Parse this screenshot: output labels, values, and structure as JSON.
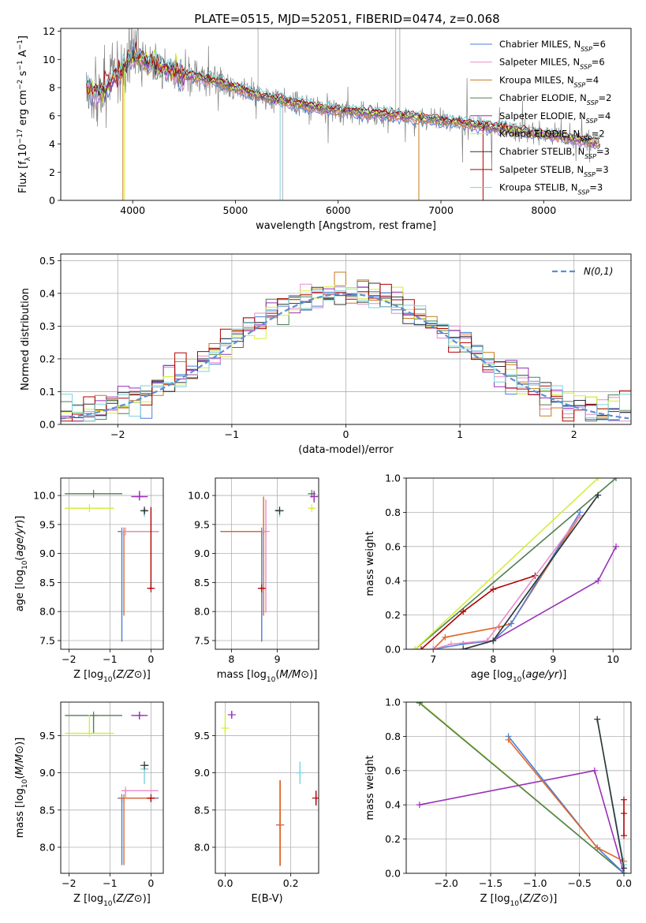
{
  "figure_title": "PLATE=0515, MJD=52051, FIBERID=0474, z=0.068",
  "colors": {
    "chabrier_miles": "#4a7fd4",
    "salpeter_miles": "#e88cc8",
    "kroupa_miles": "#c87a1a",
    "chabrier_elodie": "#4f7f55",
    "salpeter_elodie": "#9a2fb8",
    "kroupa_elodie": "#d4ee3a",
    "chabrier_stelib": "#333333",
    "salpeter_stelib": "#b00000",
    "kroupa_stelib": "#7ad2e0",
    "data": "#808080",
    "normal": "#5b8fd6",
    "orange_fit": "#e0682a"
  },
  "chart_data": [
    {
      "id": "spectrum",
      "type": "line",
      "title": "PLATE=0515, MJD=52051, FIBERID=0474, z=0.068",
      "xlabel": "wavelength [Angstrom, rest frame]",
      "ylabel": "Flux [f_λ10^-17 erg cm^-2 s^-1 A^-1]",
      "xlim": [
        3300,
        8850
      ],
      "ylim": [
        0,
        12.2
      ],
      "xticks": [
        4000,
        5000,
        6000,
        7000,
        8000
      ],
      "yticks": [
        0,
        2,
        4,
        6,
        8,
        10,
        12
      ],
      "legend_position": "top-right",
      "legend": [
        {
          "key": "chabrier_miles",
          "label": "Chabrier MILES, N",
          "sub": "SSP",
          "count": "=6"
        },
        {
          "key": "salpeter_miles",
          "label": "Salpeter MILES, N",
          "sub": "SSP",
          "count": "=6"
        },
        {
          "key": "kroupa_miles",
          "label": "Kroupa MILES, N",
          "sub": "SSP",
          "count": "=4"
        },
        {
          "key": "chabrier_elodie",
          "label": "Chabrier ELODIE, N",
          "sub": "SSP",
          "count": "=2"
        },
        {
          "key": "salpeter_elodie",
          "label": "Salpeter ELODIE, N",
          "sub": "SSP",
          "count": "=4"
        },
        {
          "key": "kroupa_elodie",
          "label": "Kroupa ELODIE, N",
          "sub": "SSP",
          "count": "=2"
        },
        {
          "key": "chabrier_stelib",
          "label": "Chabrier STELIB, N",
          "sub": "SSP",
          "count": "=3"
        },
        {
          "key": "salpeter_stelib",
          "label": "Salpeter STELIB, N",
          "sub": "SSP",
          "count": "=3"
        },
        {
          "key": "kroupa_stelib",
          "label": "Kroupa STELIB, N",
          "sub": "SSP",
          "count": "=3"
        }
      ],
      "continuum": {
        "x": [
          3550,
          3700,
          3900,
          4000,
          4100,
          4300,
          4500,
          4800,
          5000,
          5200,
          5500,
          5800,
          6000,
          6300,
          6600,
          7000,
          7400,
          7800,
          8200,
          8500
        ],
        "y": [
          8.0,
          7.6,
          9.2,
          10.3,
          10.0,
          9.4,
          8.9,
          8.5,
          8.0,
          7.5,
          7.0,
          6.6,
          6.4,
          6.2,
          6.0,
          5.7,
          5.3,
          4.9,
          4.5,
          4.1
        ]
      }
    },
    {
      "id": "residual_histogram",
      "type": "line",
      "xlabel": "(data-model)/error",
      "ylabel": "Normed distribution",
      "xlim": [
        -2.5,
        2.5
      ],
      "ylim": [
        0,
        0.52
      ],
      "xticks": [
        -2,
        -1,
        0,
        1,
        2
      ],
      "yticks": [
        0.0,
        0.1,
        0.2,
        0.3,
        0.4,
        0.5
      ],
      "legend_label": "N(0,1)",
      "legend_position": "top-right",
      "bin_width": 0.1
    },
    {
      "id": "age_vs_Z",
      "type": "scatter",
      "xlabel": "Z [log10(Z/Z⊙)]",
      "ylabel": "age [log10(age/yr)]",
      "xlim": [
        -2.2,
        0.3
      ],
      "ylim": [
        7.35,
        10.3
      ],
      "xticks": [
        -2,
        -1,
        0
      ],
      "yticks": [
        7.5,
        8.0,
        8.5,
        9.0,
        9.5,
        10.0
      ],
      "points": [
        {
          "key": "chabrier_elodie",
          "x": -1.4,
          "y": 10.03,
          "xerr": [
            0.7,
            0.7
          ],
          "yerr": [
            0,
            0
          ]
        },
        {
          "key": "kroupa_elodie",
          "x": -1.5,
          "y": 9.78,
          "xerr": [
            0.6,
            0.6
          ],
          "yerr": [
            0,
            0
          ]
        },
        {
          "key": "salpeter_elodie",
          "x": -0.28,
          "y": 9.98,
          "xerr": [
            0.2,
            0.2
          ],
          "yerr": [
            0.05,
            0.1
          ]
        },
        {
          "key": "chabrier_miles",
          "x": -0.71,
          "y": 9.38,
          "xerr": [
            0.1,
            0.9
          ],
          "yerr": [
            1.9,
            0
          ]
        },
        {
          "key": "orange_fit",
          "x": -0.66,
          "y": 9.38,
          "xerr": [
            0.1,
            0.8
          ],
          "yerr": [
            1.45,
            0
          ]
        },
        {
          "key": "salpeter_miles",
          "x": -0.62,
          "y": 9.38,
          "xerr": [
            0.1,
            0.8
          ],
          "yerr": [
            0,
            0
          ]
        },
        {
          "key": "kroupa_stelib",
          "x": -0.16,
          "y": 9.73,
          "xerr": [
            0.05,
            0.05
          ],
          "yerr": [
            0.1,
            0.04
          ]
        },
        {
          "key": "chabrier_stelib",
          "x": -0.16,
          "y": 9.74,
          "xerr": [
            0.05,
            0.05
          ],
          "yerr": [
            0.05,
            0.04
          ]
        },
        {
          "key": "salpeter_stelib",
          "x": 0.0,
          "y": 8.4,
          "xerr": [
            0.05,
            0.05
          ],
          "yerr": [
            0,
            1.4
          ]
        }
      ]
    },
    {
      "id": "age_vs_mass",
      "type": "scatter",
      "xlabel": "mass [log10(M/M⊙)]",
      "ylabel": "",
      "xlim": [
        7.65,
        9.9
      ],
      "ylim": [
        7.35,
        10.3
      ],
      "xticks": [
        8,
        9
      ],
      "yticks": [
        7.5,
        8.0,
        8.5,
        9.0,
        9.5,
        10.0
      ],
      "points": [
        {
          "key": "chabrier_elodie",
          "x": 9.75,
          "y": 10.03,
          "xerr": [
            0.05,
            0.05
          ],
          "yerr": [
            0,
            0
          ]
        },
        {
          "key": "kroupa_elodie",
          "x": 9.75,
          "y": 9.78,
          "xerr": [
            0.05,
            0.05
          ],
          "yerr": [
            0,
            0
          ]
        },
        {
          "key": "salpeter_elodie",
          "x": 9.8,
          "y": 9.98,
          "xerr": [
            0,
            0
          ],
          "yerr": [
            0.1,
            0.1
          ]
        },
        {
          "key": "chabrier_miles",
          "x": 8.66,
          "y": 9.38,
          "xerr": [
            0.9,
            0
          ],
          "yerr": [
            1.9,
            0
          ]
        },
        {
          "key": "orange_fit",
          "x": 8.7,
          "y": 9.38,
          "xerr": [
            0.9,
            0
          ],
          "yerr": [
            1.45,
            0.6
          ]
        },
        {
          "key": "salpeter_miles",
          "x": 8.75,
          "y": 9.38,
          "xerr": [
            0,
            0
          ],
          "yerr": [
            1.4,
            0.55
          ]
        },
        {
          "key": "kroupa_stelib",
          "x": 9.05,
          "y": 9.73,
          "xerr": [
            0,
            0
          ],
          "yerr": [
            0.1,
            0.05
          ]
        },
        {
          "key": "chabrier_stelib",
          "x": 9.05,
          "y": 9.74,
          "xerr": [
            0.1,
            0
          ],
          "yerr": [
            0,
            0
          ]
        },
        {
          "key": "salpeter_stelib",
          "x": 8.66,
          "y": 8.4,
          "xerr": [
            0.05,
            0.05
          ],
          "yerr": [
            0,
            0
          ]
        }
      ]
    },
    {
      "id": "massweight_vs_age",
      "type": "line",
      "xlabel": "age [log10(age/yr)]",
      "ylabel": "mass weight",
      "xlim": [
        6.55,
        10.3
      ],
      "ylim": [
        0,
        1.0
      ],
      "xticks": [
        7,
        8,
        9,
        10
      ],
      "yticks": [
        0.0,
        0.2,
        0.4,
        0.6,
        0.8,
        1.0
      ],
      "series": [
        {
          "key": "chabrier_elodie",
          "x": [
            6.7,
            10.05
          ],
          "y": [
            0.0,
            1.0
          ]
        },
        {
          "key": "kroupa_elodie",
          "x": [
            6.7,
            9.75
          ],
          "y": [
            0.0,
            1.0
          ]
        },
        {
          "key": "salpeter_stelib",
          "x": [
            6.8,
            7.5,
            8.0,
            8.7
          ],
          "y": [
            0.0,
            0.22,
            0.35,
            0.43
          ]
        },
        {
          "key": "salpeter_elodie",
          "x": [
            7.5,
            8.0,
            9.75,
            10.05
          ],
          "y": [
            0.0,
            0.05,
            0.4,
            0.6
          ]
        },
        {
          "key": "orange_fit",
          "x": [
            7.0,
            7.2,
            8.1,
            8.3,
            9.45
          ],
          "y": [
            0.0,
            0.07,
            0.13,
            0.15,
            0.78
          ]
        },
        {
          "key": "chabrier_miles",
          "x": [
            7.0,
            7.5,
            8.0,
            8.3,
            9.45
          ],
          "y": [
            0.0,
            0.03,
            0.05,
            0.15,
            0.8
          ]
        },
        {
          "key": "salpeter_miles",
          "x": [
            7.0,
            7.3,
            7.9,
            9.45
          ],
          "y": [
            0.0,
            0.03,
            0.05,
            0.78
          ]
        },
        {
          "key": "kroupa_stelib",
          "x": [
            7.5,
            8.0,
            9.75
          ],
          "y": [
            0.0,
            0.05,
            0.9
          ]
        },
        {
          "key": "chabrier_stelib",
          "x": [
            7.5,
            8.0,
            9.75
          ],
          "y": [
            0.0,
            0.05,
            0.9
          ]
        }
      ]
    },
    {
      "id": "mass_vs_Z",
      "type": "scatter",
      "xlabel": "Z [log10(Z/Z⊙)]",
      "ylabel": "mass [log10(M/M⊙)]",
      "xlim": [
        -2.2,
        0.3
      ],
      "ylim": [
        7.65,
        9.95
      ],
      "xticks": [
        -2,
        -1,
        0
      ],
      "yticks": [
        8.0,
        8.5,
        9.0,
        9.5
      ],
      "points": [
        {
          "key": "chabrier_elodie",
          "x": -1.4,
          "y": 9.77,
          "xerr": [
            0.7,
            0.7
          ],
          "yerr": [
            0.25,
            0
          ]
        },
        {
          "key": "kroupa_elodie",
          "x": -1.5,
          "y": 9.53,
          "xerr": [
            0.6,
            0.6
          ],
          "yerr": [
            0,
            0.25
          ]
        },
        {
          "key": "salpeter_elodie",
          "x": -0.28,
          "y": 9.77,
          "xerr": [
            0.2,
            0.2
          ],
          "yerr": [
            0.05,
            0.05
          ]
        },
        {
          "key": "chabrier_miles",
          "x": -0.71,
          "y": 8.66,
          "xerr": [
            0.1,
            0.9
          ],
          "yerr": [
            0.9,
            0
          ]
        },
        {
          "key": "orange_fit",
          "x": -0.66,
          "y": 8.66,
          "xerr": [
            0.1,
            0.8
          ],
          "yerr": [
            0.9,
            0
          ]
        },
        {
          "key": "salpeter_miles",
          "x": -0.62,
          "y": 8.76,
          "xerr": [
            0.1,
            0.8
          ],
          "yerr": [
            0.1,
            0
          ]
        },
        {
          "key": "kroupa_stelib",
          "x": -0.16,
          "y": 9.05,
          "xerr": [
            0,
            0.1
          ],
          "yerr": [
            0.2,
            0.1
          ]
        },
        {
          "key": "chabrier_stelib",
          "x": -0.16,
          "y": 9.1,
          "xerr": [
            0,
            0.1
          ],
          "yerr": [
            0,
            0
          ]
        },
        {
          "key": "salpeter_stelib",
          "x": 0.0,
          "y": 8.66,
          "xerr": [
            0.08,
            0.08
          ],
          "yerr": [
            0.05,
            0
          ]
        }
      ]
    },
    {
      "id": "mass_vs_ebv",
      "type": "scatter",
      "xlabel": "E(B-V)",
      "ylabel": "",
      "xlim": [
        -0.03,
        0.285
      ],
      "ylim": [
        7.65,
        9.95
      ],
      "xticks": [
        0.0,
        0.2
      ],
      "yticks": [
        8.0,
        8.5,
        9.0,
        9.5
      ],
      "points": [
        {
          "key": "kroupa_elodie",
          "x": 0.0,
          "y": 9.6,
          "xerr": [
            0,
            0
          ],
          "yerr": [
            0.1,
            0.2
          ]
        },
        {
          "key": "salpeter_elodie",
          "x": 0.02,
          "y": 9.78,
          "xerr": [
            0,
            0
          ],
          "yerr": [
            0.05,
            0.05
          ]
        },
        {
          "key": "chabrier_miles",
          "x": 0.167,
          "y": 8.3,
          "xerr": [
            0,
            0
          ],
          "yerr": [
            0.55,
            0.6
          ]
        },
        {
          "key": "orange_fit",
          "x": 0.168,
          "y": 8.3,
          "xerr": [
            0,
            0
          ],
          "yerr": [
            0.55,
            0.6
          ]
        },
        {
          "key": "kroupa_stelib",
          "x": 0.228,
          "y": 9.0,
          "xerr": [
            0,
            0
          ],
          "yerr": [
            0.15,
            0.15
          ]
        },
        {
          "key": "salpeter_stelib",
          "x": 0.277,
          "y": 8.66,
          "xerr": [
            0,
            0
          ],
          "yerr": [
            0.1,
            0.1
          ]
        }
      ]
    },
    {
      "id": "massweight_vs_Z",
      "type": "line",
      "xlabel": "Z [log10(Z/Z⊙)]",
      "ylabel": "mass weight",
      "xlim": [
        -2.45,
        0.08
      ],
      "ylim": [
        0,
        1.0
      ],
      "xticks": [
        -2.0,
        -1.5,
        -1.0,
        -0.5,
        0.0
      ],
      "yticks": [
        0.0,
        0.2,
        0.4,
        0.6,
        0.8,
        1.0
      ],
      "series": [
        {
          "key": "kroupa_elodie",
          "x": [
            -2.3,
            0.0
          ],
          "y": [
            1.0,
            0.0
          ]
        },
        {
          "key": "chabrier_elodie",
          "x": [
            -2.3,
            0.0
          ],
          "y": [
            0.995,
            0.0
          ]
        },
        {
          "key": "salpeter_elodie",
          "x": [
            -2.3,
            -0.33,
            0.0
          ],
          "y": [
            0.4,
            0.6,
            0.0
          ]
        },
        {
          "key": "chabrier_miles",
          "x": [
            -1.3,
            -0.3,
            0.0
          ],
          "y": [
            0.8,
            0.15,
            0.0
          ]
        },
        {
          "key": "orange_fit",
          "x": [
            -1.3,
            -0.3,
            0.0
          ],
          "y": [
            0.78,
            0.15,
            0.07
          ]
        },
        {
          "key": "kroupa_stelib",
          "x": [
            -0.3,
            0.0
          ],
          "y": [
            0.9,
            0.05
          ]
        },
        {
          "key": "chabrier_stelib",
          "x": [
            -0.3,
            0.0
          ],
          "y": [
            0.9,
            0.03
          ]
        },
        {
          "key": "salpeter_stelib",
          "x": [
            0.0,
            0.0,
            0.0
          ],
          "y": [
            0.43,
            0.35,
            0.22
          ]
        }
      ]
    }
  ]
}
